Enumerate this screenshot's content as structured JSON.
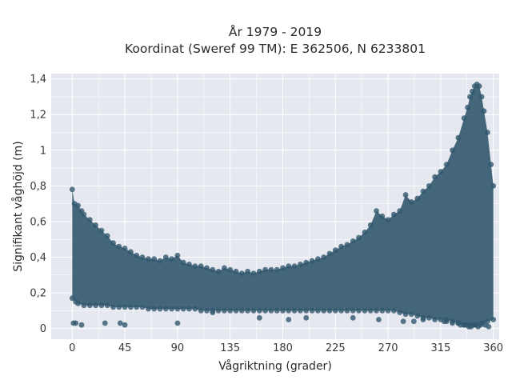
{
  "chart_data": {
    "type": "scatter",
    "title": "År 1979 - 2019",
    "subtitle": "Koordinat (Sweref 99 TM): E 362506, N 6233801",
    "xlabel": "Vågriktning (grader)",
    "ylabel": "Signifikant våghöjd (m)",
    "xlim": [
      -18,
      365
    ],
    "ylim": [
      -0.06,
      1.43
    ],
    "xticks": [
      0,
      45,
      90,
      135,
      180,
      225,
      270,
      315,
      360
    ],
    "xtick_labels": [
      "0",
      "45",
      "90",
      "135",
      "180",
      "225",
      "270",
      "315",
      "360"
    ],
    "yticks": [
      0,
      0.2,
      0.4,
      0.6,
      0.8,
      1.0,
      1.2,
      1.4
    ],
    "ytick_labels": [
      "0",
      "0,2",
      "0,4",
      "0,6",
      "0,8",
      "1",
      "1,2",
      "1,4"
    ],
    "grid": true,
    "legend": "none",
    "point_color": "#32586e",
    "background_color": "#e6e8f0",
    "series": [
      {
        "x": [
          0,
          2,
          5,
          8,
          10,
          15,
          20,
          25,
          30,
          35,
          40,
          45,
          50,
          55,
          60,
          65,
          70,
          75,
          80,
          85,
          90,
          95,
          100,
          105,
          110,
          115,
          120,
          125,
          130,
          135,
          140,
          145,
          150,
          155,
          160,
          165,
          170,
          175,
          180,
          185,
          190,
          195,
          200,
          205,
          210,
          215,
          220,
          225,
          230,
          235,
          240,
          245,
          250,
          255,
          260,
          265,
          270,
          275,
          280,
          285,
          290,
          295,
          300,
          305,
          310,
          315,
          320,
          325,
          330,
          335,
          338,
          340,
          342,
          344,
          346,
          348,
          350,
          352,
          355,
          358,
          360,
          0,
          3,
          5,
          10,
          15,
          20,
          25,
          30,
          35,
          40,
          45,
          50,
          55,
          60,
          65,
          70,
          75,
          80,
          85,
          90,
          95,
          100,
          105,
          110,
          115,
          120,
          125,
          130,
          135,
          140,
          145,
          150,
          155,
          160,
          165,
          170,
          175,
          180,
          185,
          190,
          195,
          200,
          205,
          210,
          215,
          220,
          225,
          230,
          235,
          240,
          245,
          250,
          255,
          260,
          265,
          270,
          275,
          280,
          285,
          290,
          295,
          300,
          305,
          310,
          315,
          320,
          325,
          330,
          335,
          340,
          345,
          350,
          355,
          360,
          1,
          3,
          8,
          28,
          41,
          45,
          90,
          120,
          160,
          185,
          200,
          240,
          262,
          283,
          292,
          300,
          318,
          320,
          325,
          330,
          332,
          335,
          337,
          339,
          341,
          343,
          345,
          347,
          349,
          351,
          353,
          356
        ],
        "y": [
          0.78,
          0.7,
          0.69,
          0.66,
          0.64,
          0.61,
          0.58,
          0.55,
          0.52,
          0.48,
          0.46,
          0.45,
          0.43,
          0.41,
          0.4,
          0.39,
          0.39,
          0.38,
          0.4,
          0.39,
          0.41,
          0.37,
          0.36,
          0.35,
          0.35,
          0.34,
          0.33,
          0.32,
          0.34,
          0.33,
          0.32,
          0.31,
          0.32,
          0.31,
          0.32,
          0.33,
          0.33,
          0.33,
          0.34,
          0.35,
          0.35,
          0.36,
          0.37,
          0.38,
          0.39,
          0.4,
          0.42,
          0.44,
          0.46,
          0.47,
          0.49,
          0.51,
          0.54,
          0.58,
          0.66,
          0.63,
          0.61,
          0.64,
          0.66,
          0.75,
          0.71,
          0.73,
          0.77,
          0.8,
          0.85,
          0.88,
          0.92,
          1.0,
          1.07,
          1.18,
          1.24,
          1.3,
          1.33,
          1.36,
          1.37,
          1.36,
          1.3,
          1.22,
          1.1,
          0.92,
          0.8,
          0.17,
          0.15,
          0.14,
          0.13,
          0.13,
          0.13,
          0.13,
          0.13,
          0.12,
          0.12,
          0.12,
          0.12,
          0.12,
          0.12,
          0.11,
          0.11,
          0.11,
          0.11,
          0.11,
          0.11,
          0.11,
          0.11,
          0.11,
          0.1,
          0.1,
          0.1,
          0.1,
          0.1,
          0.1,
          0.1,
          0.1,
          0.1,
          0.1,
          0.1,
          0.1,
          0.1,
          0.1,
          0.1,
          0.1,
          0.1,
          0.1,
          0.1,
          0.1,
          0.1,
          0.1,
          0.1,
          0.1,
          0.1,
          0.1,
          0.1,
          0.1,
          0.1,
          0.1,
          0.1,
          0.1,
          0.1,
          0.1,
          0.09,
          0.08,
          0.08,
          0.07,
          0.06,
          0.06,
          0.05,
          0.05,
          0.05,
          0.04,
          0.03,
          0.02,
          0.02,
          0.02,
          0.03,
          0.04,
          0.05,
          0.03,
          0.03,
          0.02,
          0.03,
          0.03,
          0.02,
          0.03,
          0.09,
          0.06,
          0.05,
          0.06,
          0.06,
          0.05,
          0.04,
          0.04,
          0.05,
          0.04,
          0.04,
          0.03,
          0.03,
          0.02,
          0.02,
          0.02,
          0.01,
          0.01,
          0.02,
          0.02,
          0.01,
          0.02,
          0.03,
          0.02,
          0.01
        ]
      }
    ]
  }
}
